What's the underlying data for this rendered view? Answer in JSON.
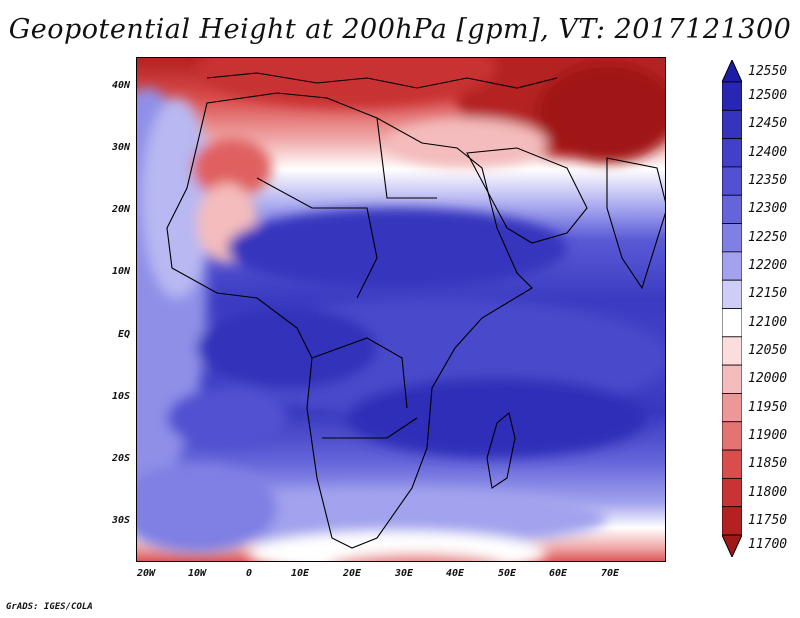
{
  "title": "Geopotential Height at 200hPa [gpm], VT: 2017121300",
  "credit": "GrADS: IGES/COLA",
  "lat_labels": [
    "40N",
    "30N",
    "20N",
    "10N",
    "EQ",
    "10S",
    "20S",
    "30S"
  ],
  "lon_labels": [
    "20W",
    "10W",
    "0",
    "10E",
    "20E",
    "30E",
    "40E",
    "50E",
    "60E",
    "70E"
  ],
  "colorbar": {
    "levels": [
      "12550",
      "12500",
      "12450",
      "12400",
      "12350",
      "12300",
      "12250",
      "12200",
      "12150",
      "12100",
      "12050",
      "12000",
      "11950",
      "11900",
      "11850",
      "11800",
      "11750",
      "11700"
    ],
    "colors": [
      "#1c1ca6",
      "#2727b4",
      "#3434bd",
      "#4040c8",
      "#5151d2",
      "#6565da",
      "#7f7fe4",
      "#a2a2ee",
      "#cdcdf7",
      "#ffffff",
      "#fbdddd",
      "#f4bcbc",
      "#ec9898",
      "#e47373",
      "#d94d4d",
      "#c83333",
      "#b42121",
      "#a01818"
    ]
  },
  "map": {
    "field": "Geopotential Height at 200hPa",
    "units": "gpm",
    "valid_time": "2017121300",
    "lon_range": [
      -22,
      81
    ],
    "lat_range": [
      -37,
      45
    ]
  }
}
